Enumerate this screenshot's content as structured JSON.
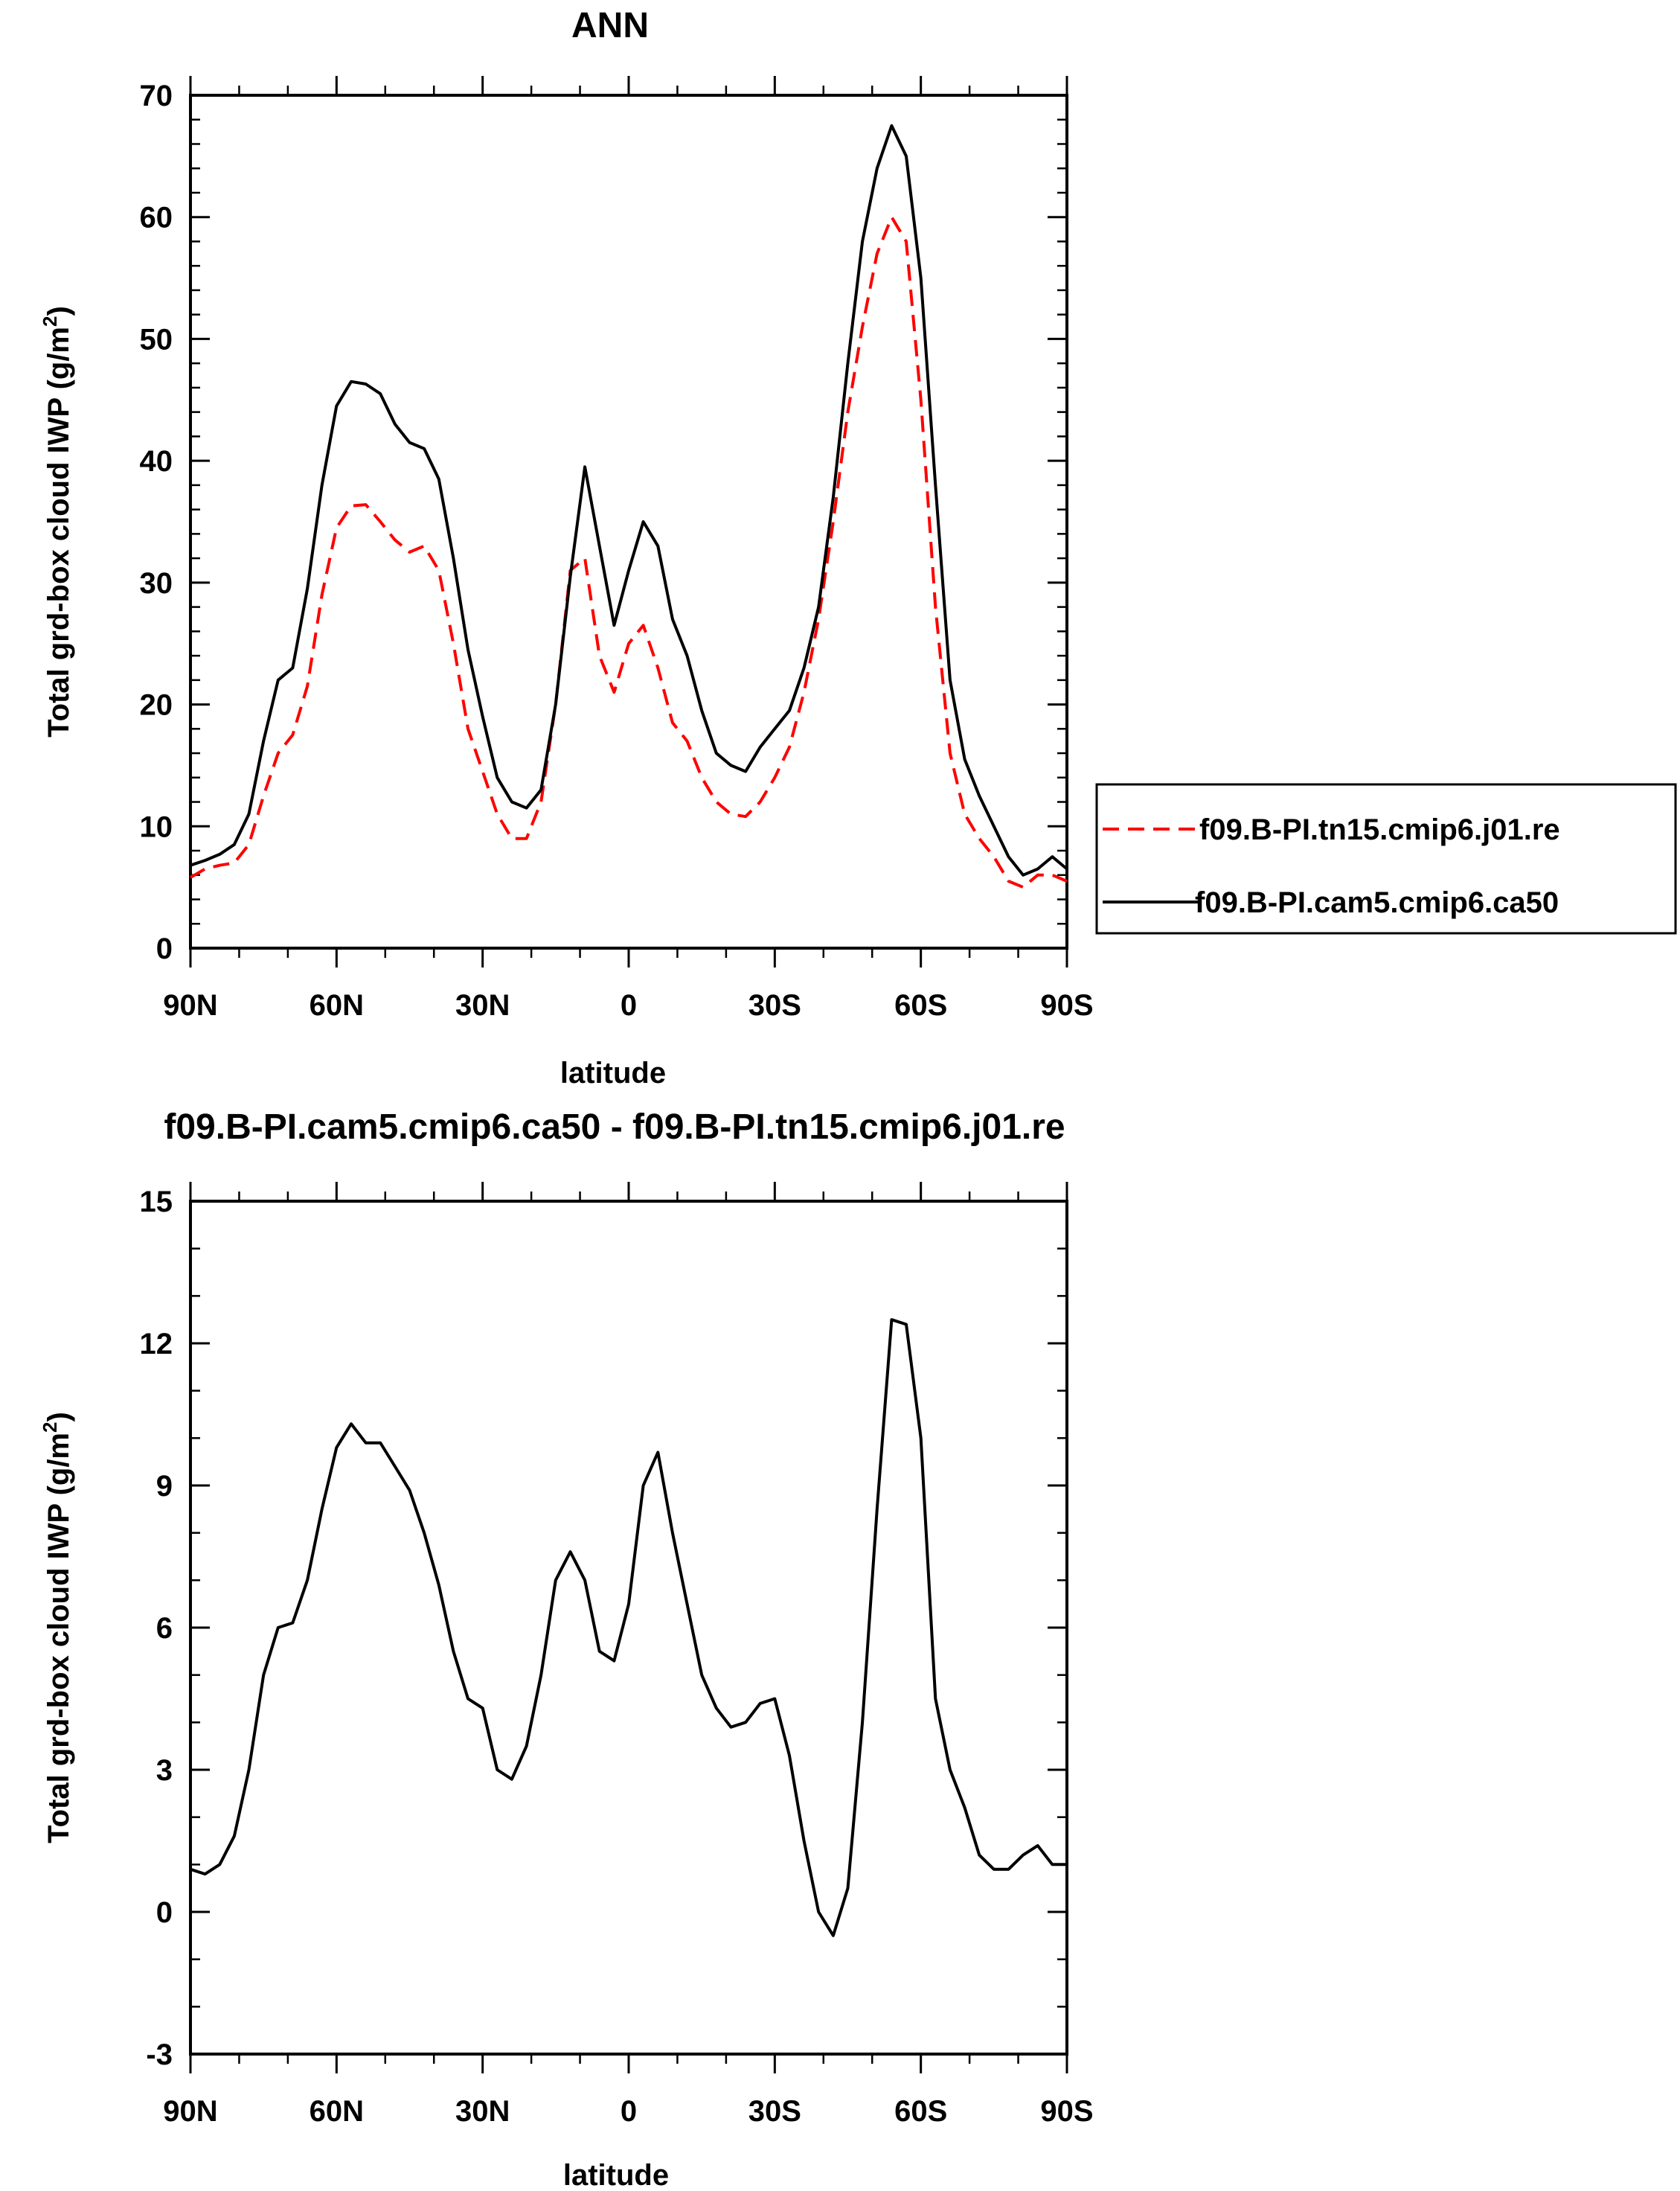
{
  "chart_data": [
    {
      "type": "line",
      "title": "ANN",
      "xlabel": "latitude",
      "ylabel": "Total grd-box cloud IWP (g/m²)",
      "ylabel_parts": {
        "main": "Total grd-box cloud IWP (g/m",
        "sup": "2",
        "tail": ")"
      },
      "xlim": [
        90,
        -90
      ],
      "ylim": [
        0,
        70
      ],
      "yticks": [
        0,
        10,
        20,
        30,
        40,
        50,
        60,
        70
      ],
      "ytick_labels": [
        "0",
        "10",
        "20",
        "30",
        "40",
        "50",
        "60",
        "70"
      ],
      "xticks": [
        90,
        60,
        30,
        0,
        -30,
        -60,
        -90
      ],
      "xtick_labels": [
        "90N",
        "60N",
        "30N",
        "0",
        "30S",
        "60S",
        "90S"
      ],
      "legend_position": "right",
      "series": [
        {
          "name": "f09.B-PI.tn15.cmip6.j01.re",
          "color": "#ff0000",
          "style": "dashed",
          "x": [
            90,
            87,
            84,
            81,
            78,
            75,
            72,
            69,
            66,
            63,
            60,
            57,
            54,
            51,
            48,
            45,
            42,
            39,
            36,
            33,
            30,
            27,
            24,
            21,
            18,
            15,
            12,
            9,
            6,
            3,
            0,
            -3,
            -6,
            -9,
            -12,
            -15,
            -18,
            -21,
            -24,
            -27,
            -30,
            -33,
            -36,
            -39,
            -42,
            -45,
            -48,
            -51,
            -54,
            -57,
            -60,
            -63,
            -66,
            -69,
            -72,
            -75,
            -78,
            -81,
            -84,
            -87,
            -90
          ],
          "values": [
            5.8,
            6.5,
            6.8,
            7.0,
            8.5,
            12.5,
            16.0,
            17.5,
            21.5,
            29.0,
            34.5,
            36.3,
            36.4,
            35.0,
            33.5,
            32.5,
            33.0,
            31.0,
            25.0,
            18.0,
            14.5,
            11.0,
            9.0,
            9.0,
            12.0,
            20.0,
            31.0,
            32.0,
            24.0,
            21.0,
            25.0,
            26.5,
            23.0,
            18.5,
            17.0,
            14.0,
            12.0,
            11.0,
            10.8,
            12.0,
            14.0,
            16.5,
            21.0,
            27.0,
            35.0,
            44.0,
            51.0,
            57.0,
            60.0,
            58.0,
            45.0,
            28.0,
            16.0,
            11.0,
            9.0,
            7.5,
            5.5,
            5.0,
            6.0,
            6.0,
            5.5
          ]
        },
        {
          "name": "f09.B-PI.cam5.cmip6.ca50",
          "color": "#000000",
          "style": "solid",
          "x": [
            90,
            87,
            84,
            81,
            78,
            75,
            72,
            69,
            66,
            63,
            60,
            57,
            54,
            51,
            48,
            45,
            42,
            39,
            36,
            33,
            30,
            27,
            24,
            21,
            18,
            15,
            12,
            9,
            6,
            3,
            0,
            -3,
            -6,
            -9,
            -12,
            -15,
            -18,
            -21,
            -24,
            -27,
            -30,
            -33,
            -36,
            -39,
            -42,
            -45,
            -48,
            -51,
            -54,
            -57,
            -60,
            -63,
            -66,
            -69,
            -72,
            -75,
            -78,
            -81,
            -84,
            -87,
            -90
          ],
          "values": [
            6.8,
            7.2,
            7.7,
            8.5,
            11.0,
            17.0,
            22.0,
            23.0,
            29.5,
            38.0,
            44.5,
            46.5,
            46.3,
            45.5,
            43.0,
            41.5,
            41.0,
            38.5,
            32.0,
            24.5,
            19.0,
            14.0,
            12.0,
            11.5,
            13.0,
            20.0,
            30.5,
            39.5,
            33.0,
            26.5,
            31.0,
            35.0,
            33.0,
            27.0,
            24.0,
            19.5,
            16.0,
            15.0,
            14.5,
            16.5,
            18.0,
            19.5,
            23.0,
            28.0,
            37.0,
            48.0,
            58.0,
            64.0,
            67.5,
            65.0,
            55.0,
            38.0,
            22.0,
            15.5,
            12.5,
            10.0,
            7.5,
            6.0,
            6.5,
            7.5,
            6.5
          ]
        }
      ]
    },
    {
      "type": "line",
      "title": "f09.B-PI.cam5.cmip6.ca50 - f09.B-PI.tn15.cmip6.j01.re",
      "xlabel": "latitude",
      "ylabel": "Total grd-box cloud IWP (g/m²)",
      "ylabel_parts": {
        "main": "Total grd-box cloud IWP (g/m",
        "sup": "2",
        "tail": ")"
      },
      "xlim": [
        90,
        -90
      ],
      "ylim": [
        -3,
        15
      ],
      "yticks": [
        -3,
        0,
        3,
        6,
        9,
        12,
        15
      ],
      "ytick_labels": [
        "-3",
        "0",
        "3",
        "6",
        "9",
        "12",
        "15"
      ],
      "xticks": [
        90,
        60,
        30,
        0,
        -30,
        -60,
        -90
      ],
      "xtick_labels": [
        "90N",
        "60N",
        "30N",
        "0",
        "30S",
        "60S",
        "90S"
      ],
      "series": [
        {
          "name": "f09.B-PI.cam5.cmip6.ca50 - f09.B-PI.tn15.cmip6.j01.re",
          "color": "#000000",
          "style": "solid",
          "x": [
            90,
            87,
            84,
            81,
            78,
            75,
            72,
            69,
            66,
            63,
            60,
            57,
            54,
            51,
            48,
            45,
            42,
            39,
            36,
            33,
            30,
            27,
            24,
            21,
            18,
            15,
            12,
            9,
            6,
            3,
            0,
            -3,
            -6,
            -9,
            -12,
            -15,
            -18,
            -21,
            -24,
            -27,
            -30,
            -33,
            -36,
            -39,
            -42,
            -45,
            -48,
            -51,
            -54,
            -57,
            -60,
            -63,
            -66,
            -69,
            -72,
            -75,
            -78,
            -81,
            -84,
            -87,
            -90
          ],
          "values": [
            0.9,
            0.8,
            1.0,
            1.6,
            3.0,
            5.0,
            6.0,
            6.1,
            7.0,
            8.5,
            9.8,
            10.3,
            9.9,
            9.9,
            9.4,
            8.9,
            8.0,
            6.9,
            5.5,
            4.5,
            4.3,
            3.0,
            2.8,
            3.5,
            5.0,
            7.0,
            7.6,
            7.0,
            5.5,
            5.3,
            6.5,
            9.0,
            9.7,
            8.0,
            6.5,
            5.0,
            4.3,
            3.9,
            4.0,
            4.4,
            4.5,
            3.3,
            1.5,
            0.0,
            -0.5,
            0.5,
            4.0,
            8.5,
            12.5,
            12.4,
            10.0,
            4.5,
            3.0,
            2.2,
            1.2,
            0.9,
            0.9,
            1.2,
            1.4,
            1.0,
            1.0
          ]
        }
      ]
    }
  ]
}
